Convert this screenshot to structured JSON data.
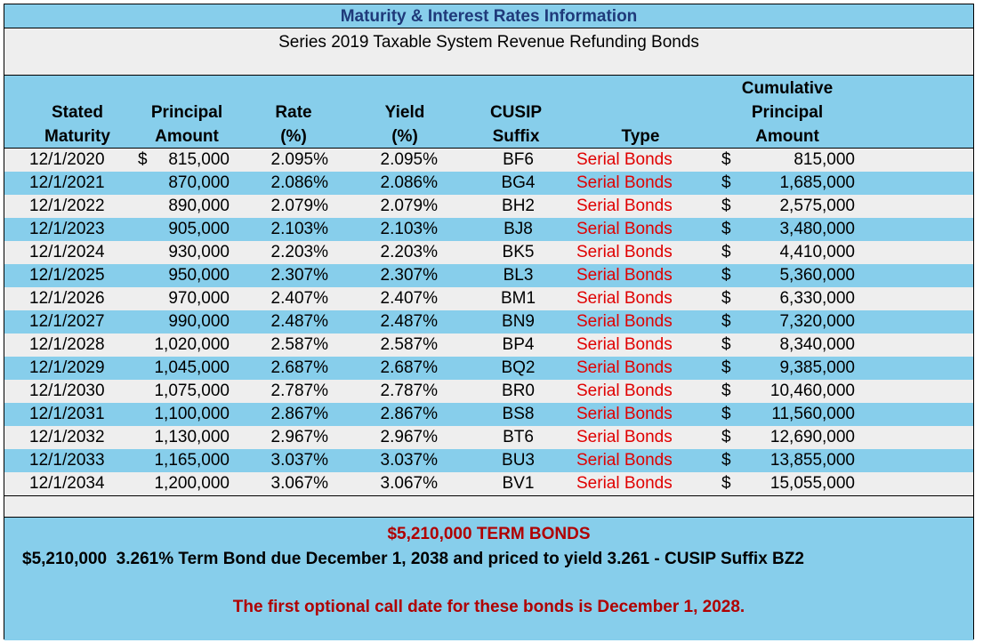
{
  "title": "Maturity & Interest Rates Information",
  "subtitle": "Series 2019 Taxable System Revenue Refunding Bonds",
  "headers": {
    "maturity": [
      "Stated",
      "Maturity"
    ],
    "principal": [
      "Principal",
      "Amount"
    ],
    "rate": [
      "Rate",
      "(%)"
    ],
    "yield": [
      "Yield",
      "(%)"
    ],
    "cusip": [
      "CUSIP",
      "Suffix"
    ],
    "type": [
      "Type"
    ],
    "cumulative": [
      "Cumulative",
      "Principal",
      "Amount"
    ]
  },
  "currency_symbol": "$",
  "rows": [
    {
      "maturity": "12/1/2020",
      "principal": "815,000",
      "rate": "2.095%",
      "yield": "2.095%",
      "cusip": "BF6",
      "type": "Serial Bonds",
      "cumulative": "815,000"
    },
    {
      "maturity": "12/1/2021",
      "principal": "870,000",
      "rate": "2.086%",
      "yield": "2.086%",
      "cusip": "BG4",
      "type": "Serial Bonds",
      "cumulative": "1,685,000"
    },
    {
      "maturity": "12/1/2022",
      "principal": "890,000",
      "rate": "2.079%",
      "yield": "2.079%",
      "cusip": "BH2",
      "type": "Serial Bonds",
      "cumulative": "2,575,000"
    },
    {
      "maturity": "12/1/2023",
      "principal": "905,000",
      "rate": "2.103%",
      "yield": "2.103%",
      "cusip": "BJ8",
      "type": "Serial Bonds",
      "cumulative": "3,480,000"
    },
    {
      "maturity": "12/1/2024",
      "principal": "930,000",
      "rate": "2.203%",
      "yield": "2.203%",
      "cusip": "BK5",
      "type": "Serial Bonds",
      "cumulative": "4,410,000"
    },
    {
      "maturity": "12/1/2025",
      "principal": "950,000",
      "rate": "2.307%",
      "yield": "2.307%",
      "cusip": "BL3",
      "type": "Serial Bonds",
      "cumulative": "5,360,000"
    },
    {
      "maturity": "12/1/2026",
      "principal": "970,000",
      "rate": "2.407%",
      "yield": "2.407%",
      "cusip": "BM1",
      "type": "Serial Bonds",
      "cumulative": "6,330,000"
    },
    {
      "maturity": "12/1/2027",
      "principal": "990,000",
      "rate": "2.487%",
      "yield": "2.487%",
      "cusip": "BN9",
      "type": "Serial Bonds",
      "cumulative": "7,320,000"
    },
    {
      "maturity": "12/1/2028",
      "principal": "1,020,000",
      "rate": "2.587%",
      "yield": "2.587%",
      "cusip": "BP4",
      "type": "Serial Bonds",
      "cumulative": "8,340,000"
    },
    {
      "maturity": "12/1/2029",
      "principal": "1,045,000",
      "rate": "2.687%",
      "yield": "2.687%",
      "cusip": "BQ2",
      "type": "Serial Bonds",
      "cumulative": "9,385,000"
    },
    {
      "maturity": "12/1/2030",
      "principal": "1,075,000",
      "rate": "2.787%",
      "yield": "2.787%",
      "cusip": "BR0",
      "type": "Serial Bonds",
      "cumulative": "10,460,000"
    },
    {
      "maturity": "12/1/2031",
      "principal": "1,100,000",
      "rate": "2.867%",
      "yield": "2.867%",
      "cusip": "BS8",
      "type": "Serial Bonds",
      "cumulative": "11,560,000"
    },
    {
      "maturity": "12/1/2032",
      "principal": "1,130,000",
      "rate": "2.967%",
      "yield": "2.967%",
      "cusip": "BT6",
      "type": "Serial Bonds",
      "cumulative": "12,690,000"
    },
    {
      "maturity": "12/1/2033",
      "principal": "1,165,000",
      "rate": "3.037%",
      "yield": "3.037%",
      "cusip": "BU3",
      "type": "Serial Bonds",
      "cumulative": "13,855,000"
    },
    {
      "maturity": "12/1/2034",
      "principal": "1,200,000",
      "rate": "3.067%",
      "yield": "3.067%",
      "cusip": "BV1",
      "type": "Serial Bonds",
      "cumulative": "15,055,000"
    }
  ],
  "footer": {
    "term_heading": "$5,210,000 TERM BONDS",
    "term_line": "$5,210,000  3.261% Term Bond due December 1, 2038 and priced to yield 3.261 - CUSIP Suffix BZ2",
    "call_note": "The first optional call date for these bonds is December 1, 2028."
  },
  "colors": {
    "band_blue": "#87ceeb",
    "band_gray": "#eeeeee",
    "title_text": "#1f3a7a",
    "serial_text": "#e00000",
    "footer_red": "#b00000"
  }
}
